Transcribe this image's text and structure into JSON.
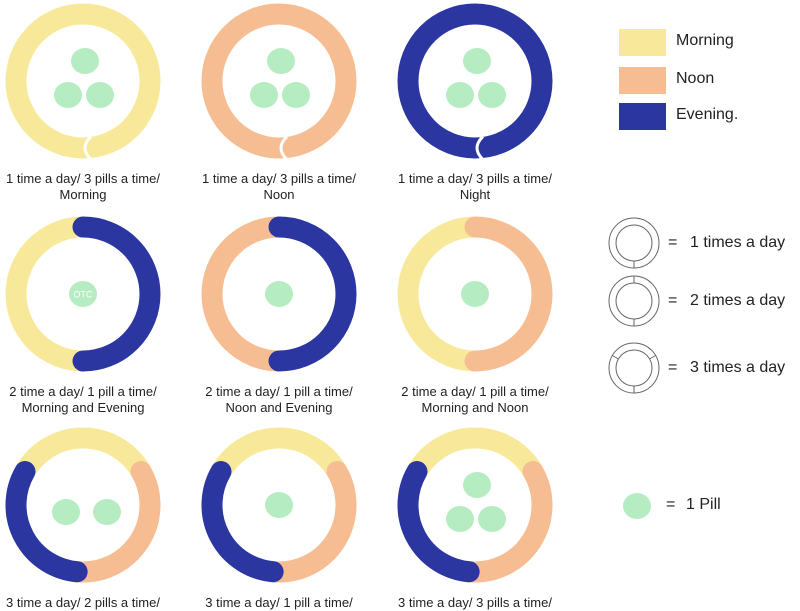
{
  "colors": {
    "morning": "#f8e99a",
    "noon": "#f6bd92",
    "evening": "#2c36a0",
    "pill": "#b6ecc1",
    "outline": "#666666"
  },
  "diagrams": [
    {
      "segments": [
        "morning"
      ],
      "pills": 3,
      "caption": [
        "1 time a day/ 3 pills a time/",
        "Morning"
      ]
    },
    {
      "segments": [
        "noon"
      ],
      "pills": 3,
      "caption": [
        "1 time a day/ 3 pills a time/",
        "Noon"
      ]
    },
    {
      "segments": [
        "evening"
      ],
      "pills": 3,
      "caption": [
        "1 time a day/ 3 pills a time/",
        "Night"
      ]
    },
    {
      "segments": [
        "morning",
        "evening"
      ],
      "pills": 1,
      "pill_label": "OTC",
      "caption": [
        "2 time a day/ 1 pill a time/",
        "Morning and Evening"
      ]
    },
    {
      "segments": [
        "noon",
        "evening"
      ],
      "pills": 1,
      "caption": [
        "2 time a day/ 1 pill a time/",
        "Noon and Evening"
      ]
    },
    {
      "segments": [
        "morning",
        "noon"
      ],
      "pills": 1,
      "caption": [
        "2 time a day/ 1 pill a time/",
        "Morning and Noon"
      ]
    },
    {
      "segments": [
        "morning",
        "noon",
        "evening"
      ],
      "pills": 2,
      "caption": [
        "3 time a day/ 2 pills a time/"
      ]
    },
    {
      "segments": [
        "morning",
        "noon",
        "evening"
      ],
      "pills": 1,
      "caption": [
        "3 time a day/ 1 pill a time/"
      ]
    },
    {
      "segments": [
        "morning",
        "noon",
        "evening"
      ],
      "pills": 3,
      "caption": [
        "3 time a day/ 3 pills a time/"
      ]
    }
  ],
  "legend": {
    "time_of_day": [
      {
        "key": "morning",
        "label": "Morning"
      },
      {
        "key": "noon",
        "label": "Noon"
      },
      {
        "key": "evening",
        "label": "Evening."
      }
    ],
    "frequency": [
      {
        "divisions": 1,
        "label": "1 times a day"
      },
      {
        "divisions": 2,
        "label": "2 times a day"
      },
      {
        "divisions": 3,
        "label": "3 times a day"
      }
    ],
    "pill": {
      "label": "1 Pill"
    },
    "equals": "="
  }
}
